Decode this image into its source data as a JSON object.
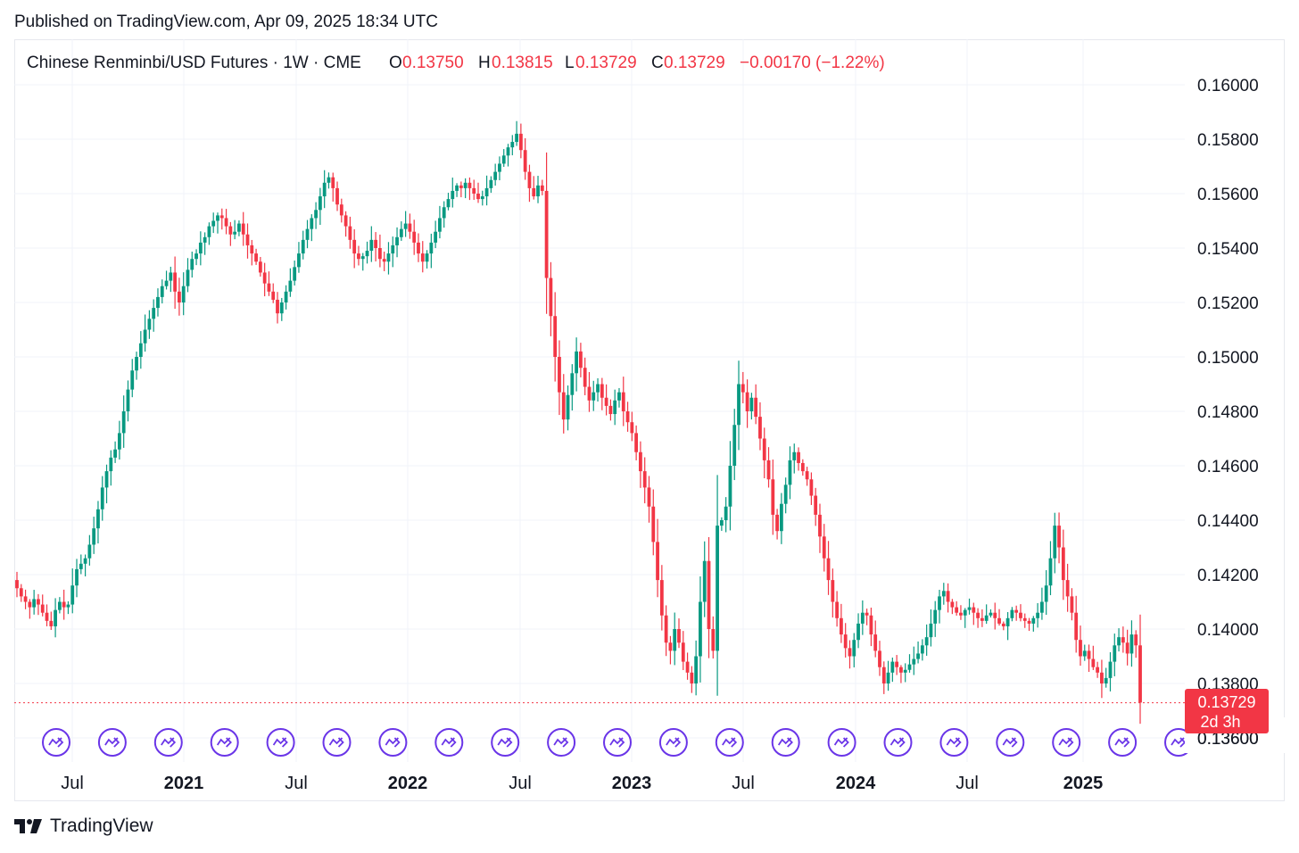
{
  "header": {
    "published": "Published on TradingView.com, Apr 09, 2025 18:34 UTC"
  },
  "legend": {
    "symbol": "Chinese Renminbi/USD Futures · 1W · CME",
    "o_label": "O",
    "o_value": "0.13750",
    "h_label": "H",
    "h_value": "0.13815",
    "l_label": "L",
    "l_value": "0.13729",
    "c_label": "C",
    "c_value": "0.13729",
    "change": "−0.00170 (−1.22%)"
  },
  "footer": {
    "brand": "TradingView"
  },
  "colors": {
    "up": "#089981",
    "down": "#f23645",
    "text": "#131722",
    "grid": "#f0f3fa",
    "event": "#6a35e8",
    "price_label_bg": "#f23645"
  },
  "chart_data": {
    "type": "candlestick",
    "ylim": [
      0.1355,
      0.162
    ],
    "y_ticks": [
      "0.16000",
      "0.15800",
      "0.15600",
      "0.15400",
      "0.15200",
      "0.15000",
      "0.14800",
      "0.14600",
      "0.14400",
      "0.14200",
      "0.14000",
      "0.13800",
      "0.13600"
    ],
    "x_ticks": [
      {
        "label": "Jul",
        "bold": false
      },
      {
        "label": "2021",
        "bold": true
      },
      {
        "label": "Jul",
        "bold": false
      },
      {
        "label": "2022",
        "bold": true
      },
      {
        "label": "Jul",
        "bold": false
      },
      {
        "label": "2023",
        "bold": true
      },
      {
        "label": "Jul",
        "bold": false
      },
      {
        "label": "2024",
        "bold": true
      },
      {
        "label": "Jul",
        "bold": false
      },
      {
        "label": "2025",
        "bold": true
      }
    ],
    "last_price": "0.13729",
    "countdown": "2d 3h",
    "event_markers": 21,
    "candles_note": "weekly OHLC, ~256 candles, Jan 2020 – Apr 2025",
    "closes": [
      0.1415,
      0.1412,
      0.141,
      0.1408,
      0.1411,
      0.1409,
      0.1406,
      0.1403,
      0.1401,
      0.1407,
      0.141,
      0.1408,
      0.1409,
      0.1416,
      0.1422,
      0.1424,
      0.1426,
      0.1431,
      0.1437,
      0.1444,
      0.1452,
      0.1458,
      0.1463,
      0.1466,
      0.1472,
      0.148,
      0.1488,
      0.1495,
      0.15,
      0.1505,
      0.151,
      0.1514,
      0.1518,
      0.1522,
      0.1526,
      0.1528,
      0.1531,
      0.1524,
      0.152,
      0.1526,
      0.1532,
      0.1536,
      0.1538,
      0.1542,
      0.1544,
      0.1548,
      0.155,
      0.1552,
      0.1551,
      0.1548,
      0.1545,
      0.1546,
      0.1549,
      0.1545,
      0.1541,
      0.1538,
      0.1535,
      0.1531,
      0.1527,
      0.1524,
      0.1521,
      0.1516,
      0.152,
      0.1524,
      0.1528,
      0.1533,
      0.1538,
      0.1543,
      0.1547,
      0.1551,
      0.1554,
      0.1559,
      0.1564,
      0.1566,
      0.1562,
      0.1556,
      0.1552,
      0.1548,
      0.1543,
      0.1538,
      0.1536,
      0.1537,
      0.1539,
      0.1543,
      0.154,
      0.1536,
      0.1535,
      0.1538,
      0.1541,
      0.1544,
      0.1547,
      0.1549,
      0.1546,
      0.1542,
      0.1538,
      0.1535,
      0.1538,
      0.1542,
      0.1546,
      0.1551,
      0.1555,
      0.1558,
      0.1561,
      0.1563,
      0.1562,
      0.1564,
      0.1562,
      0.156,
      0.1558,
      0.1559,
      0.1562,
      0.1565,
      0.1568,
      0.1571,
      0.1574,
      0.1577,
      0.1579,
      0.1582,
      0.1576,
      0.1568,
      0.1562,
      0.1559,
      0.1563,
      0.1561,
      0.1529,
      0.1515,
      0.15,
      0.1487,
      0.1477,
      0.1486,
      0.1494,
      0.1502,
      0.1496,
      0.1489,
      0.1484,
      0.1487,
      0.149,
      0.1485,
      0.1482,
      0.1479,
      0.1484,
      0.1487,
      0.148,
      0.1476,
      0.1472,
      0.1465,
      0.1458,
      0.1452,
      0.1445,
      0.1432,
      0.1418,
      0.1405,
      0.1395,
      0.1392,
      0.14,
      0.1395,
      0.1388,
      0.1384,
      0.138,
      0.139,
      0.141,
      0.1425,
      0.14,
      0.1392,
      0.1438,
      0.144,
      0.1445,
      0.146,
      0.1475,
      0.149,
      0.1487,
      0.148,
      0.1485,
      0.1478,
      0.147,
      0.1462,
      0.1455,
      0.1442,
      0.1436,
      0.1446,
      0.1453,
      0.1462,
      0.1465,
      0.1461,
      0.1458,
      0.1455,
      0.1449,
      0.1442,
      0.1434,
      0.1426,
      0.1418,
      0.141,
      0.1404,
      0.1398,
      0.1393,
      0.139,
      0.1396,
      0.1402,
      0.1406,
      0.1405,
      0.1398,
      0.1392,
      0.1386,
      0.138,
      0.1384,
      0.1388,
      0.1386,
      0.1384,
      0.1385,
      0.1387,
      0.1389,
      0.1391,
      0.1394,
      0.1397,
      0.1402,
      0.1407,
      0.1412,
      0.1414,
      0.141,
      0.1408,
      0.1406,
      0.1405,
      0.1407,
      0.1408,
      0.1406,
      0.1404,
      0.1403,
      0.1405,
      0.1406,
      0.1404,
      0.1402,
      0.1401,
      0.1404,
      0.1407,
      0.1406,
      0.1404,
      0.1403,
      0.1402,
      0.1404,
      0.1406,
      0.141,
      0.1416,
      0.1426,
      0.1438,
      0.143,
      0.1418,
      0.1412,
      0.1406,
      0.1396,
      0.139,
      0.1392,
      0.1389,
      0.1386,
      0.1384,
      0.138,
      0.1382,
      0.1388,
      0.1394,
      0.1397,
      0.1395,
      0.1391,
      0.1398,
      0.1394,
      0.1373
    ]
  }
}
